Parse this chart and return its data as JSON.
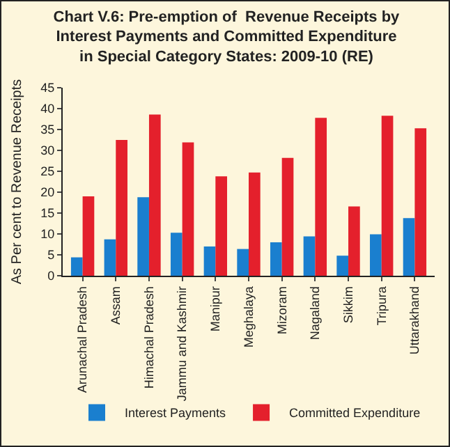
{
  "chart_data": {
    "type": "bar",
    "title": "Chart V.6: Pre-emption of  Revenue Receipts by Interest Payments and Committed Expenditure in Special Category States: 2009-10 (RE)",
    "ylabel": "As Per cent to Revenue Receipts",
    "categories": [
      "Arunachal Pradesh",
      "Assam",
      "Himachal Pradesh",
      "Jammu and Kashmir",
      "Manipur",
      "Meghalaya",
      "Mizoram",
      "Nagaland",
      "Sikkim",
      "Tripura",
      "Uttarakhand"
    ],
    "series": [
      {
        "name": "Interest Payments",
        "color": "#1a7fcf",
        "values": [
          4.4,
          8.7,
          18.8,
          10.3,
          7.0,
          6.4,
          8.0,
          9.4,
          4.8,
          9.9,
          13.8
        ]
      },
      {
        "name": "Committed Expenditure",
        "color": "#e4202c",
        "values": [
          19.0,
          32.5,
          38.6,
          31.9,
          23.8,
          24.7,
          28.2,
          37.8,
          16.6,
          38.3,
          35.3
        ]
      }
    ],
    "ylim": [
      0,
      45
    ],
    "yticks": [
      0,
      5,
      10,
      15,
      20,
      25,
      30,
      35,
      40,
      45
    ],
    "grid": false,
    "legend": "bottom"
  }
}
